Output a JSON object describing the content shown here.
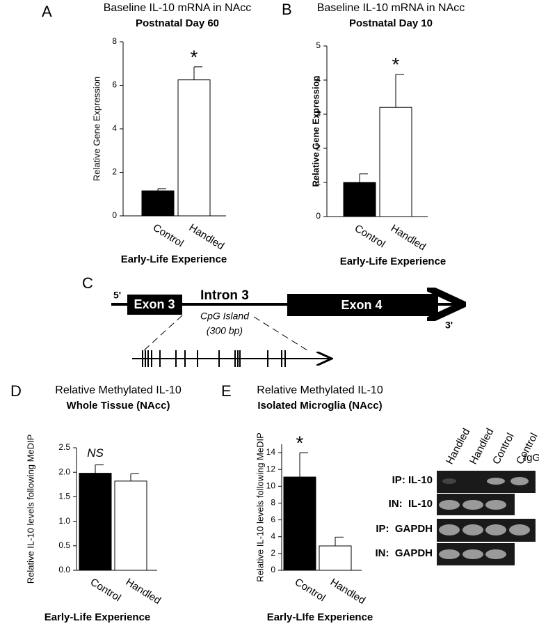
{
  "chart_data": [
    {
      "type": "bar",
      "panel": "A",
      "title": "Baseline IL-10 mRNA in NAcc",
      "subtitle": "Postnatal Day 60",
      "y_label": "Relative Gene Expression",
      "x_label": "Early-Life Experience",
      "categories": [
        "Control",
        "Handled"
      ],
      "values": [
        1.15,
        6.25
      ],
      "errors": [
        0.1,
        0.6
      ],
      "colors": [
        "#000000",
        "#ffffff"
      ],
      "ylim": [
        0,
        8
      ],
      "yticks": [
        0,
        2,
        4,
        6,
        8
      ],
      "annotation": {
        "text": "*",
        "category": "Handled"
      }
    },
    {
      "type": "bar",
      "panel": "B",
      "title": "Baseline IL-10 mRNA in NAcc",
      "subtitle": "Postnatal Day 10",
      "y_label": "Relative Gene Expression",
      "x_label": "Early-Life Experience",
      "categories": [
        "Control",
        "Handled"
      ],
      "values": [
        1.0,
        3.2
      ],
      "errors": [
        0.25,
        0.97
      ],
      "colors": [
        "#000000",
        "#ffffff"
      ],
      "ylim": [
        0,
        5
      ],
      "yticks": [
        0,
        1,
        2,
        3,
        4,
        5
      ],
      "annotation": {
        "text": "*",
        "category": "Handled"
      }
    },
    {
      "type": "bar",
      "panel": "D",
      "title": "Relative Methylated IL-10",
      "subtitle": "Whole Tissue (NAcc)",
      "y_label": "Relative IL-10 levels following MeDIP",
      "x_label": "Early-Life Experience",
      "categories": [
        "Control",
        "Handled"
      ],
      "values": [
        1.98,
        1.82
      ],
      "errors": [
        0.17,
        0.15
      ],
      "colors": [
        "#000000",
        "#ffffff"
      ],
      "ylim": [
        0,
        2.5
      ],
      "yticks": [
        {
          "value": 0,
          "label": "0.0"
        },
        0.5,
        {
          "value": 1,
          "label": "1.0"
        },
        1.5,
        {
          "value": 2,
          "label": "2.0"
        },
        2.5
      ],
      "annotation": {
        "text": "NS",
        "category": "Control"
      }
    },
    {
      "type": "bar",
      "panel": "E",
      "title": "Relative Methylated IL-10",
      "subtitle": "Isolated Microglia (NAcc)",
      "y_label": "Relative IL-10 levels following MeDIP",
      "x_label": "Early-LIfe Experience",
      "categories": [
        "Control",
        "Handled"
      ],
      "values": [
        11.1,
        2.9
      ],
      "errors": [
        2.9,
        1.05
      ],
      "colors": [
        "#000000",
        "#ffffff"
      ],
      "ylim": [
        0,
        15
      ],
      "yticks": [
        0,
        2,
        4,
        6,
        8,
        10,
        12,
        14
      ],
      "annotation": {
        "text": "*",
        "category": "Control"
      }
    }
  ],
  "gene_diagram": {
    "panel": "C",
    "five_prime": "5'",
    "three_prime": "3'",
    "exon_a": "Exon 3",
    "intron": "Intron 3",
    "exon_b": "Exon 4",
    "cpg": "CpG Island",
    "cpg_size": "(300 bp)"
  },
  "gel": {
    "lanes": [
      "Handled",
      "Handled",
      "Control",
      "Control",
      "IgG"
    ],
    "rows": [
      "IP: IL-10",
      "IN:  IL-10",
      "IP:  GAPDH",
      "IN:  GAPDH"
    ]
  }
}
